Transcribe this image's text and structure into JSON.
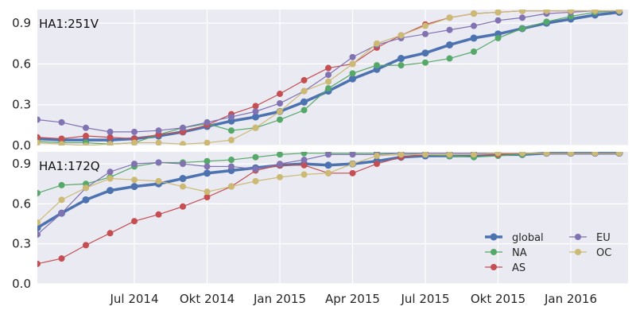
{
  "colors": {
    "global": "#4c72b0",
    "NA": "#55a868",
    "AS": "#c44e52",
    "EU": "#8172b2",
    "OC": "#ccb974",
    "panel_bg": "#eaeaf2",
    "grid": "#ffffff",
    "text": "#262626"
  },
  "chart_data": [
    {
      "type": "line",
      "title": "HA1:251V",
      "xlabel": "",
      "ylabel": "",
      "ylim": [
        0,
        1
      ],
      "yticks": [
        "0.0",
        "0.3",
        "0.6",
        "0.9"
      ],
      "grid": true,
      "x": [
        "2014-03",
        "2014-04",
        "2014-05",
        "2014-06",
        "2014-07",
        "2014-08",
        "2014-09",
        "2014-10",
        "2014-11",
        "2014-12",
        "2015-01",
        "2015-02",
        "2015-03",
        "2015-04",
        "2015-05",
        "2015-06",
        "2015-07",
        "2015-08",
        "2015-09",
        "2015-10",
        "2015-11",
        "2015-12",
        "2016-01",
        "2016-02",
        "2016-03"
      ],
      "series": [
        {
          "name": "global",
          "values": [
            0.05,
            0.04,
            0.04,
            0.04,
            0.05,
            0.07,
            0.1,
            0.14,
            0.18,
            0.21,
            0.25,
            0.32,
            0.4,
            0.49,
            0.56,
            0.64,
            0.68,
            0.74,
            0.79,
            0.82,
            0.86,
            0.9,
            0.93,
            0.96,
            0.98
          ]
        },
        {
          "name": "NA",
          "values": [
            0.03,
            0.02,
            0.02,
            0.01,
            0.02,
            0.08,
            0.13,
            0.16,
            0.11,
            0.13,
            0.19,
            0.26,
            0.42,
            0.53,
            0.59,
            0.59,
            0.61,
            0.64,
            0.69,
            0.79,
            0.86,
            0.91,
            0.95,
            0.98,
            0.99
          ]
        },
        {
          "name": "AS",
          "values": [
            0.06,
            0.05,
            0.07,
            0.06,
            0.05,
            0.08,
            0.1,
            0.15,
            0.23,
            0.29,
            0.38,
            0.48,
            0.57,
            0.6,
            0.72,
            0.81,
            0.89,
            0.94,
            0.97,
            0.98,
            0.99,
            0.99,
            0.99,
            0.99,
            0.99
          ]
        },
        {
          "name": "EU",
          "values": [
            0.19,
            0.17,
            0.13,
            0.1,
            0.1,
            0.11,
            0.13,
            0.17,
            0.21,
            0.25,
            0.31,
            0.4,
            0.52,
            0.65,
            0.74,
            0.79,
            0.82,
            0.85,
            0.88,
            0.92,
            0.94,
            0.97,
            0.98,
            0.99,
            0.99
          ]
        },
        {
          "name": "OC",
          "values": [
            0.02,
            0.01,
            0.0,
            0.01,
            0.02,
            0.02,
            0.01,
            0.02,
            0.04,
            0.13,
            0.25,
            0.4,
            0.47,
            0.6,
            0.75,
            0.81,
            0.88,
            0.94,
            0.97,
            0.98,
            0.99,
            0.99,
            0.99,
            0.99,
            0.99
          ]
        }
      ]
    },
    {
      "type": "line",
      "title": "HA1:172Q",
      "xlabel": "",
      "ylabel": "",
      "ylim": [
        0,
        1
      ],
      "yticks": [
        "0.0",
        "0.3",
        "0.6",
        "0.9"
      ],
      "grid": true,
      "xticks": [
        "Jul 2014",
        "Okt 2014",
        "Jan 2015",
        "Apr 2015",
        "Jul 2015",
        "Okt 2015",
        "Jan 2016"
      ],
      "x": [
        "2014-03",
        "2014-04",
        "2014-05",
        "2014-06",
        "2014-07",
        "2014-08",
        "2014-09",
        "2014-10",
        "2014-11",
        "2014-12",
        "2015-01",
        "2015-02",
        "2015-03",
        "2015-04",
        "2015-05",
        "2015-06",
        "2015-07",
        "2015-08",
        "2015-09",
        "2015-10",
        "2015-11",
        "2015-12",
        "2016-01",
        "2016-02",
        "2016-03"
      ],
      "legend": {
        "placement": "lower-right",
        "columns": 2
      },
      "series": [
        {
          "name": "global",
          "values": [
            0.42,
            0.53,
            0.63,
            0.7,
            0.73,
            0.75,
            0.79,
            0.83,
            0.85,
            0.87,
            0.89,
            0.9,
            0.89,
            0.9,
            0.92,
            0.95,
            0.96,
            0.96,
            0.96,
            0.97,
            0.97,
            0.98,
            0.98,
            0.98,
            0.98
          ]
        },
        {
          "name": "NA",
          "values": [
            0.68,
            0.74,
            0.75,
            0.8,
            0.88,
            0.91,
            0.91,
            0.92,
            0.93,
            0.95,
            0.97,
            0.98,
            0.98,
            0.98,
            0.98,
            0.98,
            0.97,
            0.96,
            0.95,
            0.96,
            0.97,
            0.98,
            0.98,
            0.98,
            0.98
          ]
        },
        {
          "name": "AS",
          "values": [
            0.15,
            0.19,
            0.29,
            0.38,
            0.47,
            0.52,
            0.58,
            0.65,
            0.73,
            0.85,
            0.89,
            0.89,
            0.83,
            0.83,
            0.9,
            0.95,
            0.97,
            0.97,
            0.97,
            0.97,
            0.98,
            0.98,
            0.98,
            0.98,
            0.98
          ]
        },
        {
          "name": "EU",
          "values": [
            0.37,
            0.53,
            0.72,
            0.84,
            0.9,
            0.91,
            0.9,
            0.88,
            0.88,
            0.86,
            0.9,
            0.93,
            0.97,
            0.97,
            0.97,
            0.98,
            0.98,
            0.98,
            0.98,
            0.98,
            0.98,
            0.98,
            0.98,
            0.98,
            0.98
          ]
        },
        {
          "name": "OC",
          "values": [
            0.46,
            0.63,
            0.72,
            0.79,
            0.78,
            0.77,
            0.73,
            0.69,
            0.73,
            0.77,
            0.8,
            0.82,
            0.83,
            0.9,
            0.96,
            0.97,
            0.97,
            0.97,
            0.97,
            0.98,
            0.98,
            0.98,
            0.98,
            0.98,
            0.98
          ]
        }
      ]
    }
  ]
}
